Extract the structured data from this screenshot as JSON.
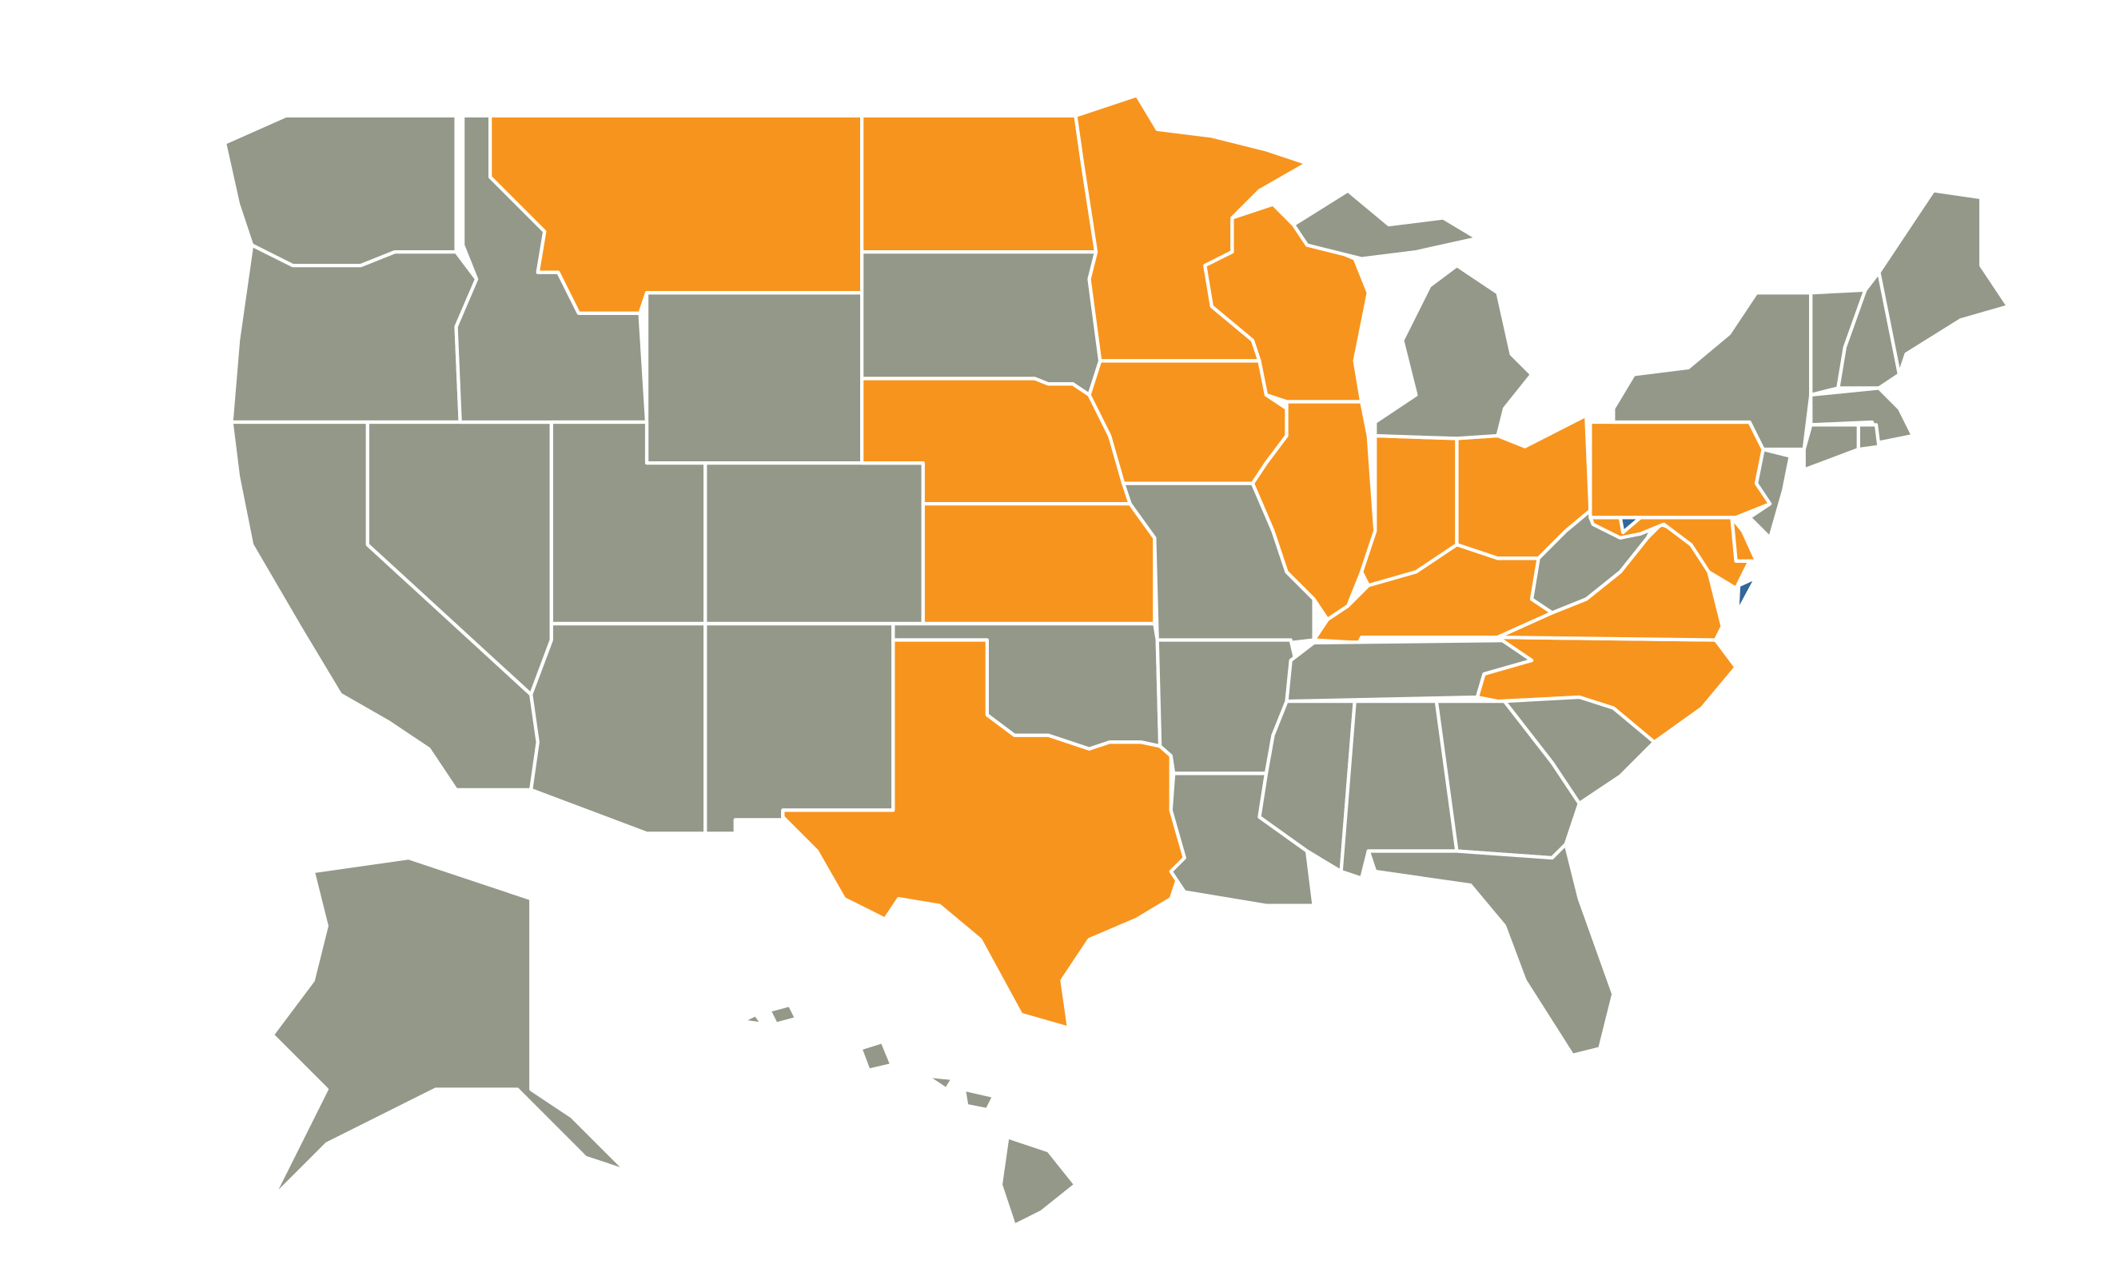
{
  "map": {
    "colors": {
      "orange": "#F7941D",
      "gray": "#939889",
      "blue": "#336699",
      "border": "#FFFFFF",
      "background": "#FFFFFF"
    },
    "regions": {
      "WA": "gray",
      "OR": "gray",
      "CA": "gray",
      "NV": "gray",
      "ID": "gray",
      "MT": "orange",
      "WY": "gray",
      "UT": "gray",
      "CO": "gray",
      "AZ": "gray",
      "NM": "gray",
      "ND": "orange",
      "SD": "gray",
      "NE": "orange",
      "KS": "orange",
      "OK": "gray",
      "TX": "orange",
      "MN": "orange",
      "IA": "orange",
      "MO": "gray",
      "AR": "gray",
      "LA": "gray",
      "WI": "orange",
      "IL": "orange",
      "IN": "orange",
      "OH": "orange",
      "MI": "gray",
      "MI-UP": "gray",
      "KY": "orange",
      "TN": "gray",
      "NC": "orange",
      "VA": "orange",
      "WV": "gray",
      "MD": "orange",
      "DE": "orange",
      "MD-panhandle": "blue",
      "VA-eastern-shore": "blue",
      "PA": "orange",
      "NJ": "gray",
      "NY": "gray",
      "VT": "gray",
      "NH": "gray",
      "ME": "gray",
      "MA": "gray",
      "CT": "gray",
      "RI": "gray",
      "MS": "gray",
      "AL": "gray",
      "GA": "gray",
      "SC": "gray",
      "FL": "gray",
      "AK": "gray",
      "HI": "gray"
    }
  }
}
